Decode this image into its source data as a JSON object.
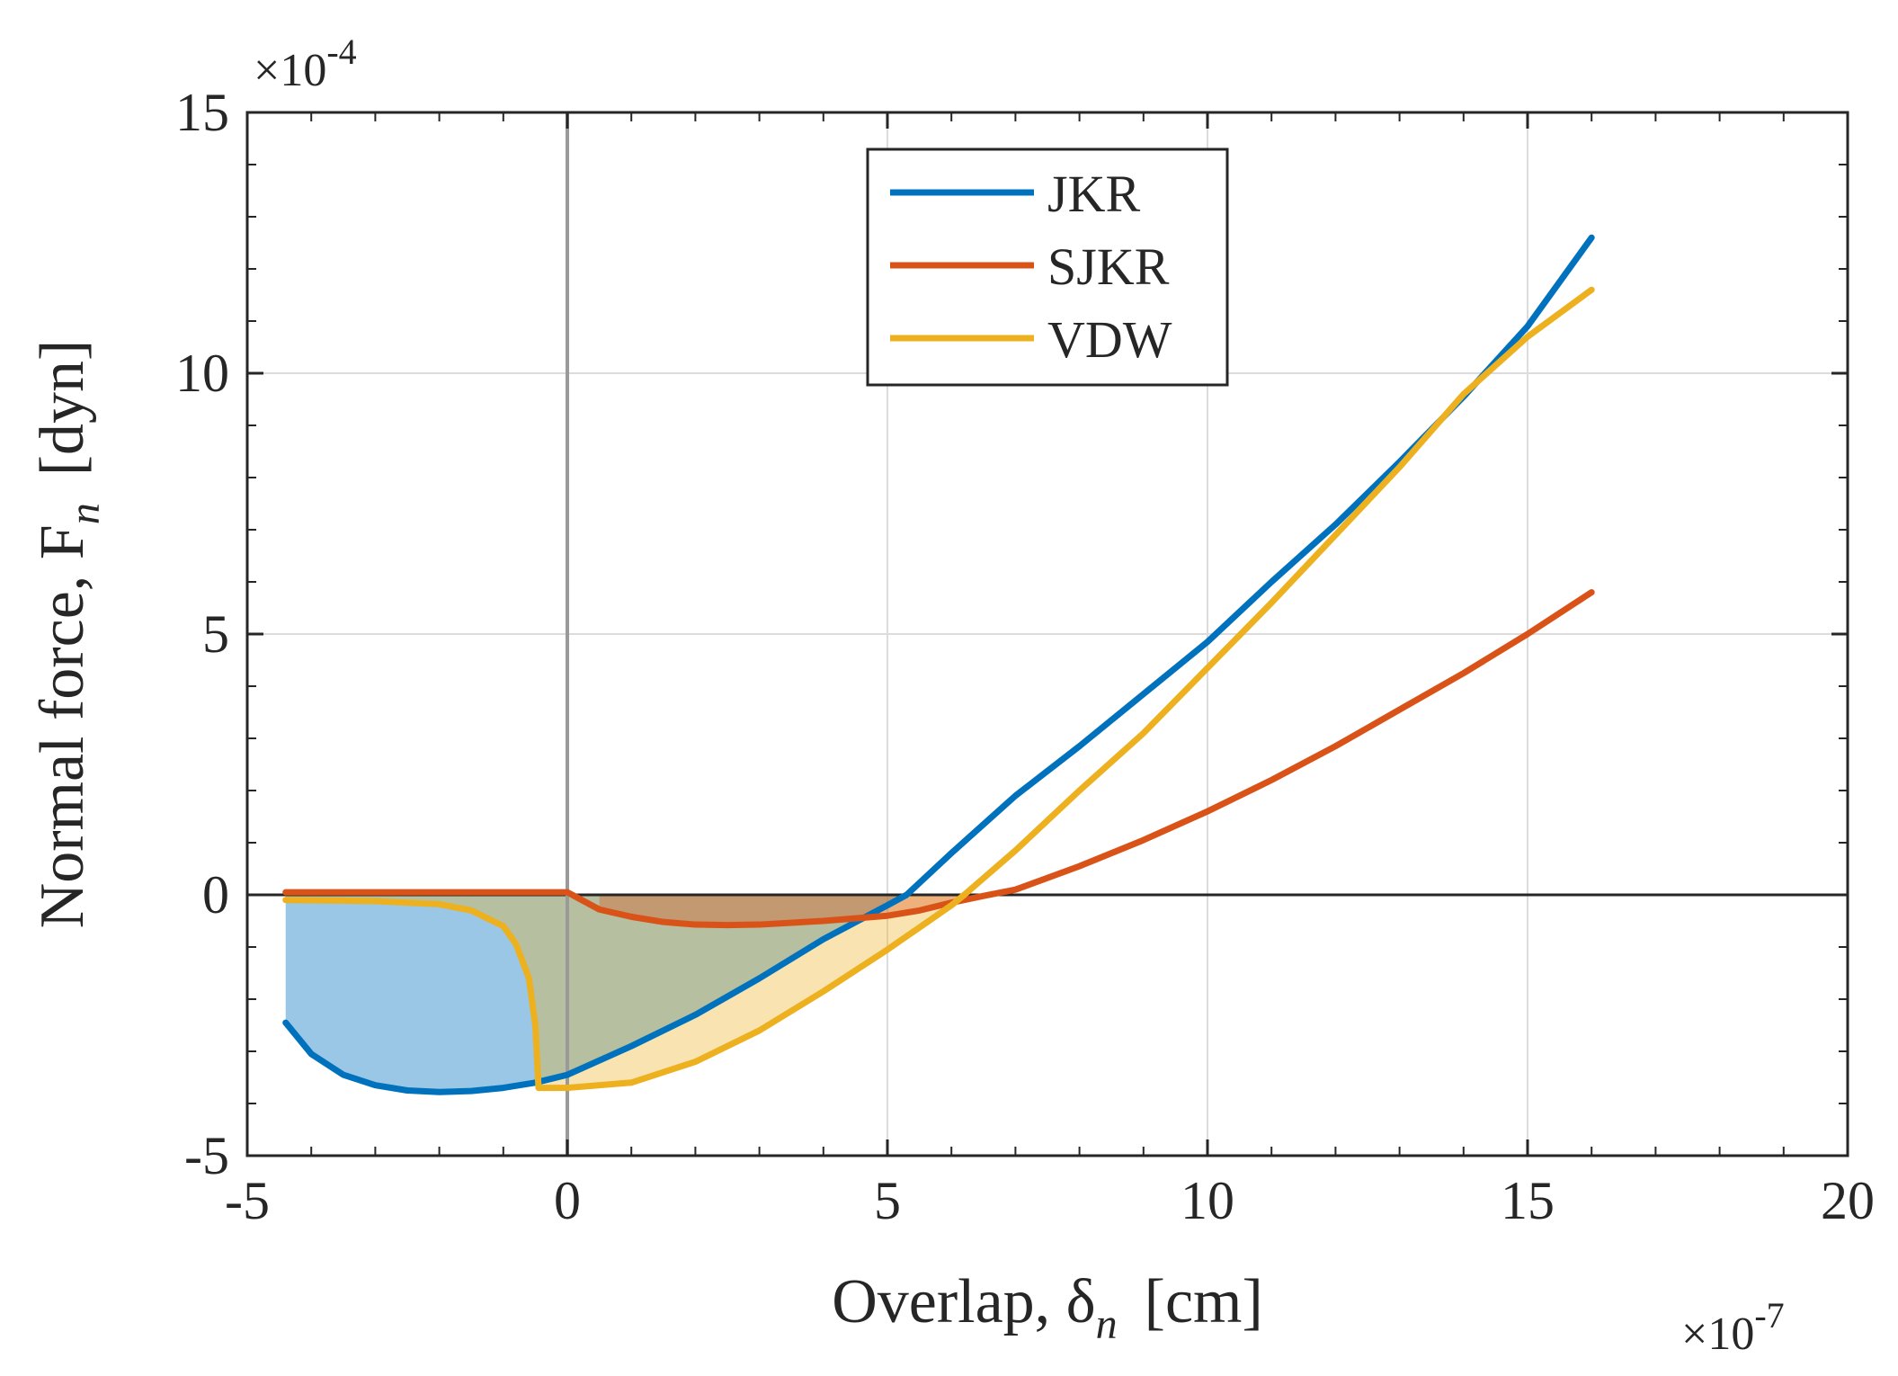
{
  "chart_data": {
    "type": "line",
    "title": "",
    "xlabel": "Overlap, δ",
    "xlabel_sub": "n",
    "xlabel_unit": "[cm]",
    "ylabel": "Normal force, F",
    "ylabel_sub": "n",
    "ylabel_unit": "[dyn]",
    "x_multiplier": "×10",
    "x_multiplier_exp": "-7",
    "y_multiplier": "×10",
    "y_multiplier_exp": "-4",
    "xlim": [
      -5,
      20
    ],
    "ylim": [
      -5,
      15
    ],
    "xticks": [
      "-5",
      "0",
      "5",
      "10",
      "15",
      "20"
    ],
    "yticks": [
      "-5",
      "0",
      "5",
      "10",
      "15"
    ],
    "grid": true,
    "legend_position": "top-center",
    "series": [
      {
        "name": "JKR",
        "color": "#0072BD",
        "x": [
          -4.4,
          -4.0,
          -3.5,
          -3.0,
          -2.5,
          -2.0,
          -1.5,
          -1.0,
          -0.5,
          0.0,
          1.0,
          2.0,
          3.0,
          4.0,
          5.0,
          5.3,
          6.0,
          7.0,
          8.0,
          9.0,
          10.0,
          11.0,
          12.0,
          13.0,
          14.0,
          15.0,
          16.0
        ],
        "y": [
          -2.45,
          -3.05,
          -3.45,
          -3.65,
          -3.75,
          -3.78,
          -3.76,
          -3.7,
          -3.6,
          -3.45,
          -2.9,
          -2.3,
          -1.6,
          -0.85,
          -0.2,
          0.0,
          0.8,
          1.9,
          2.85,
          3.85,
          4.85,
          6.0,
          7.1,
          8.3,
          9.55,
          10.9,
          12.6
        ]
      },
      {
        "name": "SJKR",
        "color": "#D95319",
        "x": [
          -4.4,
          -2.0,
          -0.5,
          0.0,
          0.5,
          1.0,
          1.5,
          2.0,
          2.5,
          3.0,
          4.0,
          5.0,
          5.5,
          6.0,
          6.5,
          7.0,
          8.0,
          9.0,
          10.0,
          11.0,
          12.0,
          13.0,
          14.0,
          15.0,
          16.0
        ],
        "y": [
          0.05,
          0.05,
          0.05,
          0.05,
          -0.28,
          -0.42,
          -0.52,
          -0.57,
          -0.58,
          -0.57,
          -0.5,
          -0.4,
          -0.3,
          -0.15,
          -0.02,
          0.1,
          0.55,
          1.05,
          1.6,
          2.2,
          2.85,
          3.55,
          4.25,
          5.0,
          5.8
        ]
      },
      {
        "name": "VDW",
        "color": "#EDB120",
        "x": [
          -4.4,
          -3.0,
          -2.0,
          -1.5,
          -1.0,
          -0.8,
          -0.6,
          -0.5,
          -0.45,
          -0.3,
          0.0,
          1.0,
          2.0,
          3.0,
          4.0,
          5.0,
          6.0,
          6.2,
          7.0,
          8.0,
          9.0,
          10.0,
          11.0,
          12.0,
          13.0,
          14.0,
          15.0,
          16.0
        ],
        "y": [
          -0.1,
          -0.12,
          -0.18,
          -0.3,
          -0.6,
          -0.95,
          -1.6,
          -2.5,
          -3.7,
          -3.7,
          -3.7,
          -3.6,
          -3.2,
          -2.6,
          -1.85,
          -1.05,
          -0.2,
          0.0,
          0.85,
          2.0,
          3.1,
          4.35,
          5.6,
          6.9,
          8.2,
          9.6,
          10.7,
          11.6
        ]
      }
    ]
  }
}
